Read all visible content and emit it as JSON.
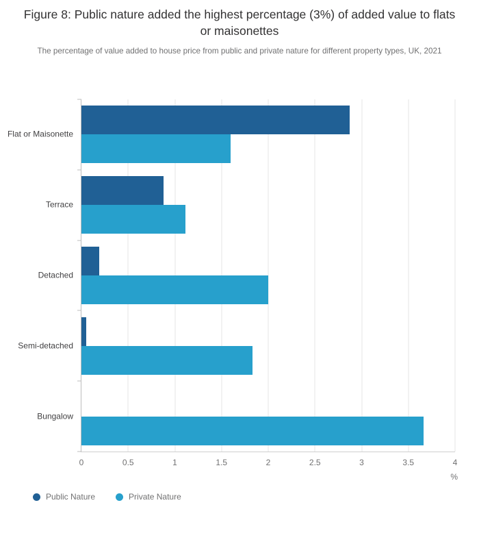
{
  "header": {
    "title": "Figure 8: Public nature added the highest percentage (3%) of added value to flats or maisonettes",
    "subtitle": "The percentage of value added to house price from public and private nature for different property types, UK, 2021"
  },
  "chart_data": {
    "type": "bar",
    "orientation": "horizontal",
    "title": "Figure 8: Public nature added the highest percentage (3%) of added value to flats or maisonettes",
    "subtitle": "The percentage of value added to house price from public and private nature for different property types, UK, 2021",
    "categories": [
      "Flat or Maisonette",
      "Terrace",
      "Detached",
      "Semi-detached",
      "Bungalow"
    ],
    "series": [
      {
        "name": "Public Nature",
        "color": "#206095",
        "values": [
          2.87,
          0.88,
          0.19,
          0.05,
          0
        ]
      },
      {
        "name": "Private Nature",
        "color": "#27a0cc",
        "values": [
          1.6,
          1.11,
          2.0,
          1.83,
          3.66
        ]
      }
    ],
    "xlabel": "%",
    "ylabel": "",
    "xlim": [
      0,
      4
    ],
    "xticks": [
      0,
      0.5,
      1,
      1.5,
      2,
      2.5,
      3,
      3.5,
      4
    ],
    "xtick_labels": [
      "0",
      "0.5",
      "1",
      "1.5",
      "2",
      "2.5",
      "3",
      "3.5",
      "4"
    ],
    "grid": true,
    "legend_position": "bottom-left"
  }
}
